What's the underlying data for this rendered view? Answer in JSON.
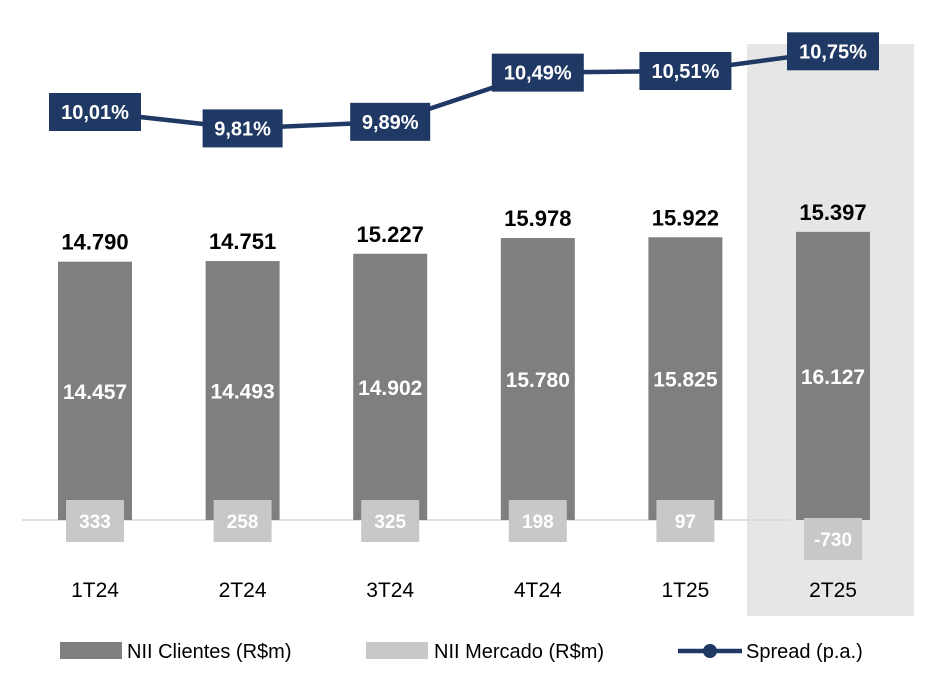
{
  "chart_data": {
    "type": "bar",
    "stacked": true,
    "categories": [
      "1T24",
      "2T24",
      "3T24",
      "4T24",
      "1T25",
      "2T25"
    ],
    "highlighted_category": "2T25",
    "series": [
      {
        "name": "NII Clientes (R$m)",
        "values": [
          14457,
          14493,
          14902,
          15780,
          15825,
          16127
        ],
        "labels": [
          "14.457",
          "14.493",
          "14.902",
          "15.780",
          "15.825",
          "16.127"
        ],
        "color": "#7f7f7f"
      },
      {
        "name": "NII Mercado (R$m)",
        "values": [
          333,
          258,
          325,
          198,
          97,
          -730
        ],
        "labels": [
          "333",
          "258",
          "325",
          "198",
          "97",
          "-730"
        ],
        "color": "#c8c8c8"
      }
    ],
    "totals": {
      "values": [
        14790,
        14751,
        15227,
        15978,
        15922,
        15397
      ],
      "labels": [
        "14.790",
        "14.751",
        "15.227",
        "15.978",
        "15.922",
        "15.397"
      ]
    },
    "line_series": {
      "name": "Spread (p.a.)",
      "values": [
        10.01,
        9.81,
        9.89,
        10.49,
        10.51,
        10.75
      ],
      "labels": [
        "10,01%",
        "9,81%",
        "9,89%",
        "10,49%",
        "10,51%",
        "10,75%"
      ],
      "color": "#1f3864"
    },
    "legend": {
      "position": "bottom"
    }
  }
}
